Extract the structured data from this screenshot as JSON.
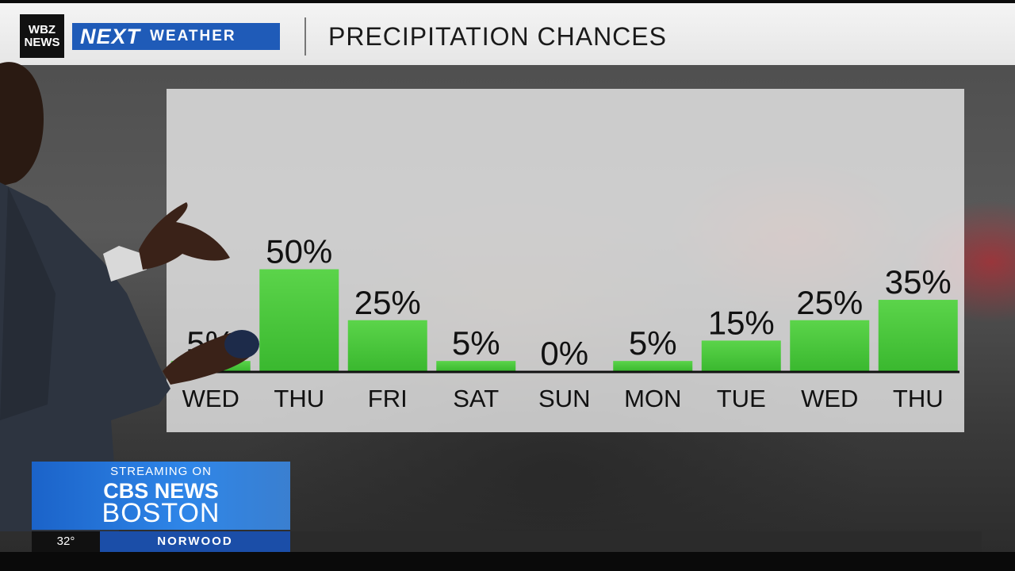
{
  "header": {
    "station_logo_line1": "WBZ",
    "station_logo_line2": "NEWS",
    "brand_next": "NEXT",
    "brand_weather": "WEATHER",
    "title": "PRECIPITATION CHANCES"
  },
  "chart_data": {
    "type": "bar",
    "title": "PRECIPITATION CHANCES",
    "categories": [
      "WED",
      "THU",
      "FRI",
      "SAT",
      "SUN",
      "MON",
      "TUE",
      "WED",
      "THU"
    ],
    "values": [
      5,
      50,
      25,
      5,
      0,
      5,
      15,
      25,
      35
    ],
    "value_labels": [
      "5%",
      "50%",
      "25%",
      "5%",
      "0%",
      "5%",
      "15%",
      "25%",
      "35%"
    ],
    "unit": "%",
    "ylim": [
      0,
      100
    ],
    "grid": false,
    "bar_color": "#3ab82f",
    "bar_color_top": "#5bd44a"
  },
  "lower_third": {
    "streaming_label": "STREAMING ON",
    "brand": "CBS NEWS",
    "city": "BOSTON",
    "temperature": "32°",
    "location": "NORWOOD",
    "accent_color": "#1b63c9"
  }
}
